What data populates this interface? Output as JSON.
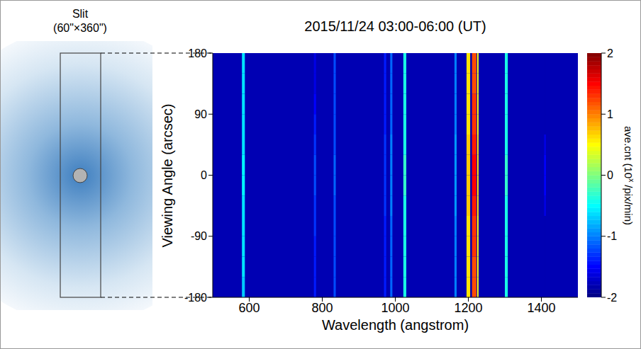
{
  "chart_data": {
    "type": "heatmap",
    "title": "2015/11/24 03:00-06:00 (UT)",
    "x_label": "Wavelength (angstrom)",
    "y_label": "Viewing Angle (arcsec)",
    "xlim": [
      500,
      1500
    ],
    "xticks": [
      600,
      800,
      1000,
      1200,
      1400
    ],
    "ylim": [
      -180,
      180
    ],
    "yticks": [
      -180,
      -90,
      0,
      90,
      180
    ],
    "y_bins": [
      -180,
      -150,
      -120,
      -90,
      -60,
      -30,
      0,
      30,
      60,
      90,
      120,
      150,
      180
    ],
    "background": -1.8,
    "lines": [
      {
        "wavelength": 584,
        "width": 8,
        "values": [
          -0.7,
          -0.6,
          -0.6,
          -0.6,
          -0.6,
          -0.5,
          -0.5,
          -0.6,
          -0.6,
          -0.6,
          -0.6,
          -0.6
        ]
      },
      {
        "wavelength": 780,
        "width": 6,
        "values": [
          -1.4,
          -1.4,
          -1.4,
          -1.3,
          -1.3,
          -1.2,
          -1.2,
          -1.3,
          -1.4,
          -1.5,
          -1.6,
          -1.6
        ]
      },
      {
        "wavelength": 834,
        "width": 6,
        "values": [
          -1.2,
          -1.2,
          -1.2,
          -1.2,
          -1.2,
          -1.1,
          -1.1,
          -1.2,
          -1.2,
          -1.2,
          -1.2,
          -1.2
        ]
      },
      {
        "wavelength": 972,
        "width": 6,
        "values": [
          -1.4,
          -1.4,
          -1.4,
          -1.4,
          -1.3,
          -1.3,
          -1.3,
          -1.3,
          -1.4,
          -1.4,
          -1.4,
          -1.4
        ]
      },
      {
        "wavelength": 989,
        "width": 6,
        "values": [
          -1.1,
          -1.1,
          -1.1,
          -1.1,
          -1.0,
          -1.0,
          -1.0,
          -1.0,
          -1.1,
          -1.1,
          -1.1,
          -1.1
        ]
      },
      {
        "wavelength": 1026,
        "width": 8,
        "values": [
          -0.4,
          -0.4,
          -0.4,
          -0.4,
          -0.4,
          -0.3,
          -0.3,
          -0.4,
          -0.4,
          -0.4,
          -0.4,
          -0.4
        ]
      },
      {
        "wavelength": 1165,
        "width": 6,
        "values": [
          -1.0,
          -1.0,
          -1.0,
          -1.0,
          -0.9,
          -0.9,
          -0.9,
          -0.9,
          -1.0,
          -1.0,
          -1.0,
          -1.0
        ]
      },
      {
        "wavelength": 1200,
        "width": 10,
        "values": [
          0.6,
          0.6,
          0.6,
          0.6,
          0.7,
          0.7,
          0.7,
          0.7,
          0.6,
          0.6,
          0.6,
          0.6
        ]
      },
      {
        "wavelength": 1216,
        "width": 12,
        "values": [
          1.2,
          1.2,
          1.3,
          1.3,
          1.4,
          1.5,
          1.5,
          1.4,
          1.3,
          1.3,
          1.2,
          1.2
        ]
      },
      {
        "wavelength": 1226,
        "width": 4,
        "values": [
          0.5,
          0.5,
          0.5,
          0.5,
          0.6,
          0.6,
          0.6,
          0.6,
          0.5,
          0.5,
          0.5,
          0.5
        ]
      },
      {
        "wavelength": 1304,
        "width": 8,
        "values": [
          -0.4,
          -0.4,
          -0.4,
          -0.4,
          -0.4,
          -0.3,
          -0.3,
          -0.4,
          -0.4,
          -0.4,
          -0.4,
          -0.4
        ]
      },
      {
        "wavelength": 1410,
        "width": 5,
        "values": [
          -1.8,
          -1.8,
          -1.8,
          -1.8,
          -1.6,
          -1.5,
          -1.5,
          -1.6,
          -1.8,
          -1.8,
          -1.8,
          -1.8
        ]
      }
    ],
    "colorbar": {
      "label": "ave.cnt (10",
      "label_sup": "x",
      "label_end": " /pix/min)",
      "range": [
        -2,
        2
      ],
      "ticks": [
        -2,
        -1,
        0,
        1,
        2
      ]
    },
    "slit": {
      "title": "Slit",
      "size_label": "(60\"×360\")"
    }
  }
}
